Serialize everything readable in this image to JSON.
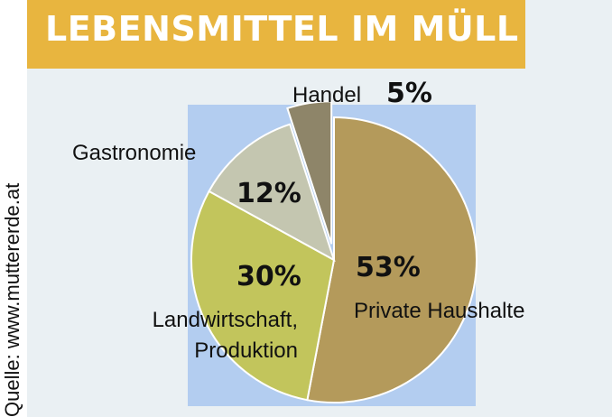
{
  "title": "LEBENSMITTEL IM MÜLL",
  "source": "Quelle: www.muttererde.at",
  "chart_data": {
    "type": "pie",
    "title": "LEBENSMITTEL IM MÜLL",
    "slices": [
      {
        "label_lines": [
          "Private Haushalte"
        ],
        "value": 53,
        "value_label": "53%",
        "color": "#b49a5b"
      },
      {
        "label_lines": [
          "Landwirtschaft,",
          "Produktion"
        ],
        "value": 30,
        "value_label": "30%",
        "color": "#c2c55c"
      },
      {
        "label_lines": [
          "Gastronomie"
        ],
        "value": 12,
        "value_label": "12%",
        "color": "#c4c6b0"
      },
      {
        "label_lines": [
          "Handel"
        ],
        "value": 5,
        "value_label": "5%",
        "color": "#8e8569",
        "exploded": true
      }
    ],
    "unit": "%"
  }
}
